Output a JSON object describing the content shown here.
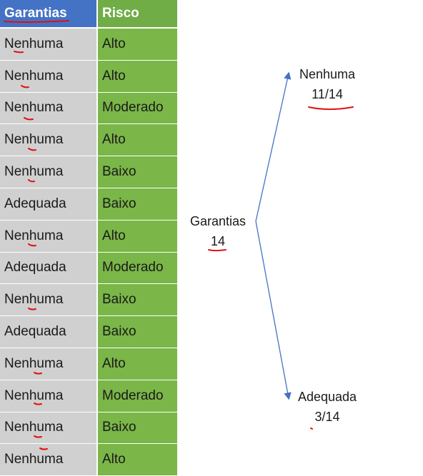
{
  "table": {
    "headers": [
      "Garantias",
      "Risco"
    ],
    "rows": [
      [
        "Nenhuma",
        "Alto"
      ],
      [
        "Nenhuma",
        "Alto"
      ],
      [
        "Nenhuma",
        "Moderado"
      ],
      [
        "Nenhuma",
        "Alto"
      ],
      [
        "Nenhuma",
        "Baixo"
      ],
      [
        "Adequada",
        "Baixo"
      ],
      [
        "Nenhuma",
        "Alto"
      ],
      [
        "Adequada",
        "Moderado"
      ],
      [
        "Nenhuma",
        "Baixo"
      ],
      [
        "Adequada",
        "Baixo"
      ],
      [
        "Nenhuma",
        "Alto"
      ],
      [
        "Nenhuma",
        "Moderado"
      ],
      [
        "Nenhuma",
        "Baixo"
      ],
      [
        "Nenhuma",
        "Alto"
      ]
    ]
  },
  "tree": {
    "root_label": "Garantias",
    "root_count": "14",
    "branches": [
      {
        "label": "Nenhuma",
        "fraction": "11/14"
      },
      {
        "label": "Adequada",
        "fraction": "3/14"
      }
    ]
  },
  "colors": {
    "header_garantias": "#4472c4",
    "header_risco": "#70ad47",
    "cell_garantias": "#d0d0d0",
    "cell_risco": "#7ab648",
    "arrow": "#4472c4",
    "annotation": "#e01010"
  }
}
